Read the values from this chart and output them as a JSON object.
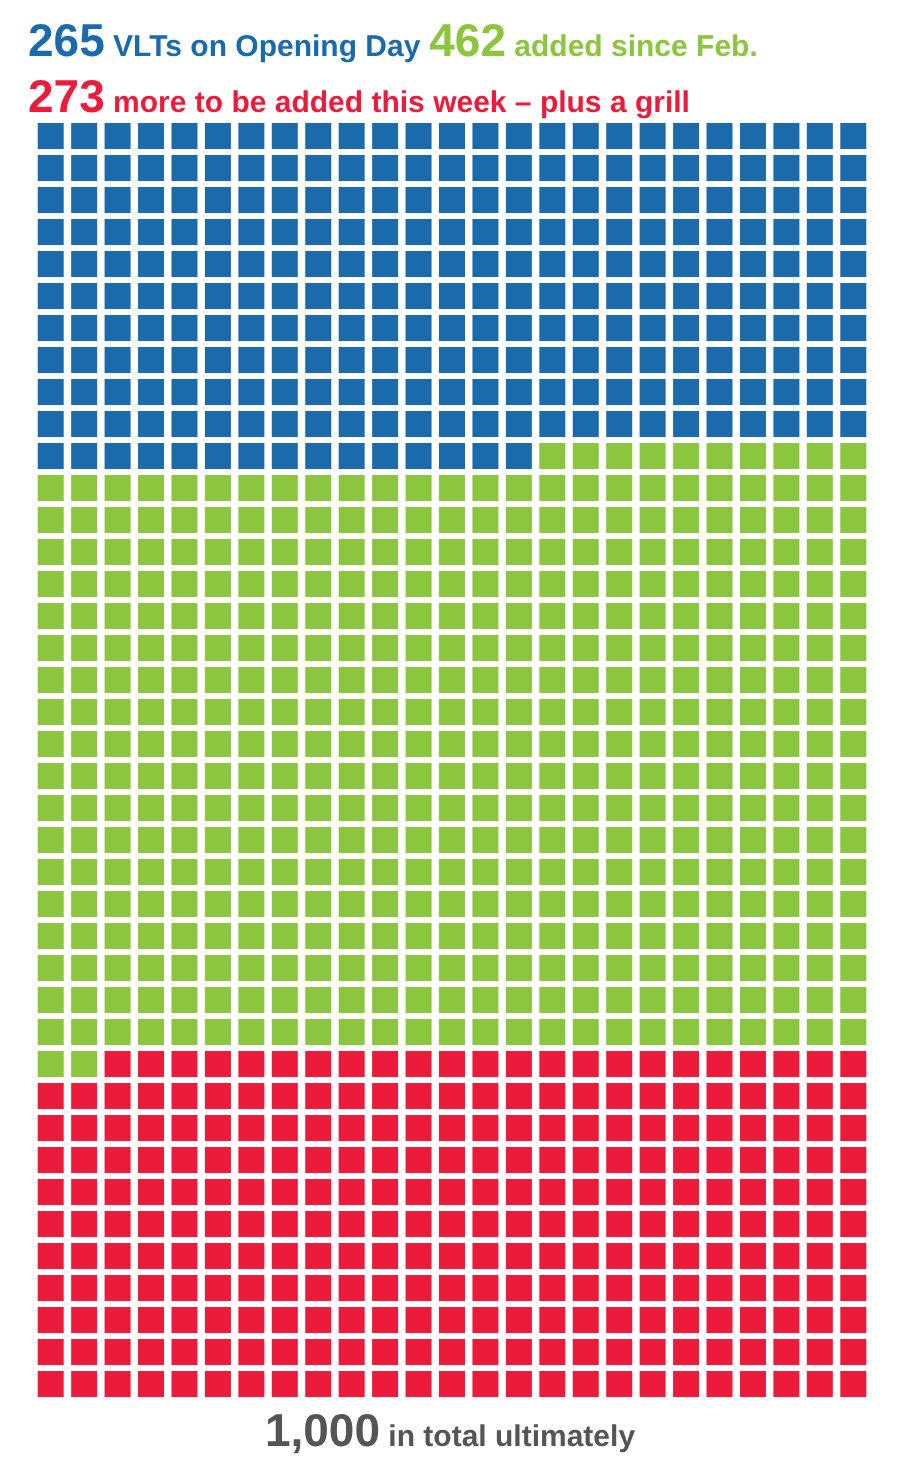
{
  "chart_data": {
    "type": "other",
    "categories": [
      "VLTs on Opening Day",
      "added since Feb.",
      "more to be added this week – plus a grill"
    ],
    "values": [
      265,
      462,
      273
    ],
    "colors": [
      "#1b6aac",
      "#8cc63f",
      "#ec1b3b"
    ],
    "data_labels": true,
    "annotations": [
      "1,000 in total ultimately"
    ]
  }
}
